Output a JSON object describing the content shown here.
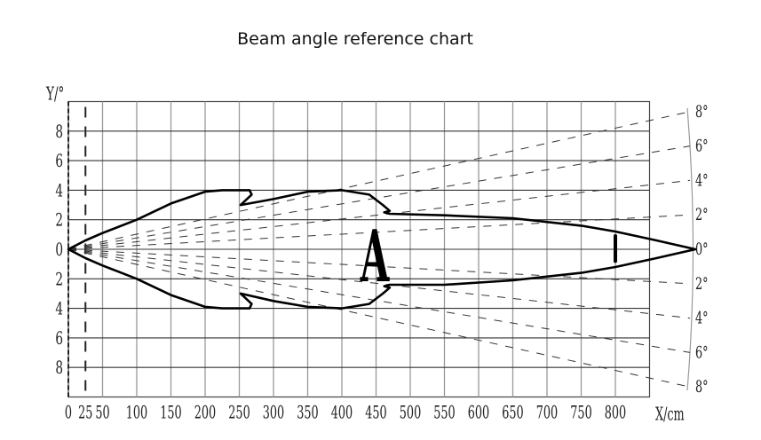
{
  "chart_data": {
    "type": "diagram",
    "title": "Beam angle reference chart",
    "xlabel": "X/cm",
    "ylabel": "Y/°",
    "x_ticks": [
      0,
      25,
      50,
      100,
      150,
      200,
      250,
      300,
      350,
      400,
      450,
      500,
      550,
      600,
      650,
      700,
      750,
      800
    ],
    "x_tick_labels": [
      "0",
      "25",
      "50",
      "100",
      "150",
      "200",
      "250",
      "300",
      "350",
      "400",
      "450",
      "500",
      "550",
      "600",
      "650",
      "700",
      "750",
      "800"
    ],
    "y_ticks": [
      8,
      6,
      4,
      2,
      0,
      -2,
      -4,
      -6,
      -8
    ],
    "y_tick_labels": [
      "8",
      "6",
      "4",
      "2",
      "0",
      "2",
      "4",
      "6",
      "8"
    ],
    "xlim": [
      0,
      850
    ],
    "ylim": [
      -10,
      10
    ],
    "angle_rays": [
      8,
      6,
      4,
      2,
      0,
      -2,
      -4,
      -6,
      -8
    ],
    "angle_labels": [
      "8°",
      "6°",
      "4°",
      "2°",
      "0°",
      "2°",
      "4°",
      "6°",
      "8°"
    ],
    "center_marker": "A",
    "beam_outline_upper": [
      [
        0,
        0
      ],
      [
        25,
        0.6
      ],
      [
        50,
        1.1
      ],
      [
        100,
        2
      ],
      [
        150,
        3.1
      ],
      [
        200,
        3.9
      ],
      [
        225,
        4
      ],
      [
        265,
        4
      ],
      [
        268,
        3.7
      ],
      [
        252,
        3
      ],
      [
        300,
        3.4
      ],
      [
        350,
        3.9
      ],
      [
        400,
        4
      ],
      [
        440,
        3.7
      ],
      [
        460,
        3
      ],
      [
        470,
        2.6
      ],
      [
        462,
        2.5
      ],
      [
        470,
        2.4
      ],
      [
        550,
        2.3
      ],
      [
        650,
        2.1
      ],
      [
        750,
        1.6
      ],
      [
        800,
        1.2
      ],
      [
        860,
        0.6
      ],
      [
        917,
        0
      ]
    ],
    "beam_outline_lower": [
      [
        0,
        0
      ],
      [
        25,
        -0.6
      ],
      [
        50,
        -1.1
      ],
      [
        100,
        -2
      ],
      [
        150,
        -3.1
      ],
      [
        200,
        -3.9
      ],
      [
        225,
        -4
      ],
      [
        265,
        -4
      ],
      [
        268,
        -3.7
      ],
      [
        252,
        -3
      ],
      [
        300,
        -3.5
      ],
      [
        350,
        -3.9
      ],
      [
        400,
        -4
      ],
      [
        440,
        -3.7
      ],
      [
        460,
        -3
      ],
      [
        470,
        -2.6
      ],
      [
        462,
        -2.5
      ],
      [
        470,
        -2.4
      ],
      [
        550,
        -2.4
      ],
      [
        650,
        -2.1
      ],
      [
        750,
        -1.6
      ],
      [
        800,
        -1.2
      ],
      [
        860,
        -0.6
      ],
      [
        917,
        0
      ]
    ],
    "marker_bar_x": 800
  }
}
